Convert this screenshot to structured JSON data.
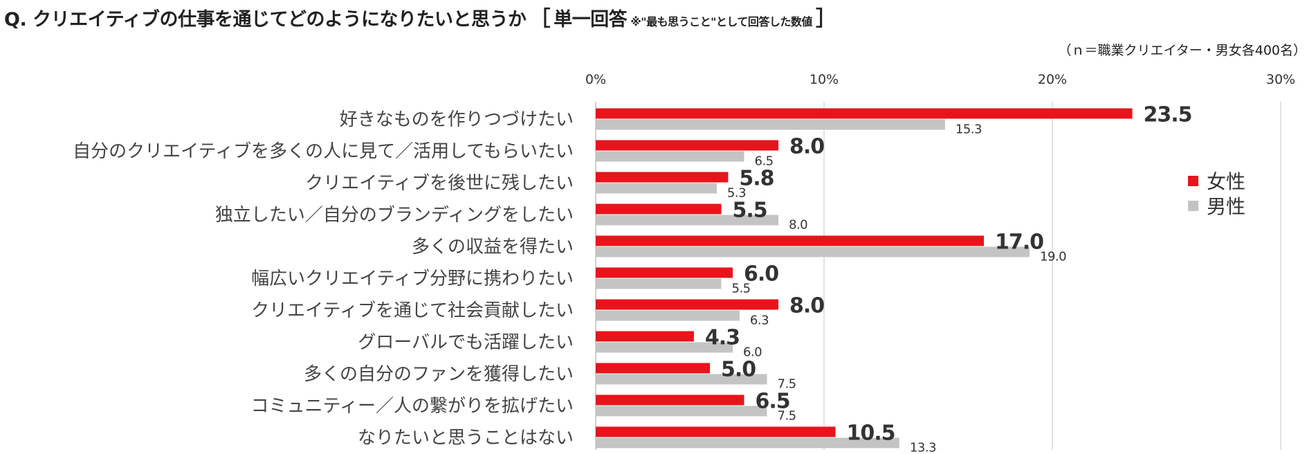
{
  "title": {
    "main": "Q. クリエイティブの仕事を通じてどのようになりたいと思うか",
    "bracket_open": "［",
    "type_label": "単一回答",
    "note": "※\"最も思うこと\"として回答した数値",
    "bracket_close": "］"
  },
  "sample_note": "（ｎ＝職業クリエイター・男女各400名）",
  "colors": {
    "female": "#e8141c",
    "male": "#c4c4c4",
    "gridline": "#d9d9d9",
    "axis": "#bfbfbf"
  },
  "legend": {
    "female_label": "女性",
    "male_label": "男性"
  },
  "chart_data": {
    "type": "bar",
    "orientation": "horizontal",
    "title": "Q. クリエイティブの仕事を通じてどのようになりたいと思うか",
    "xlabel": "",
    "ylabel": "",
    "xlim": [
      0,
      30
    ],
    "ticks": [
      0,
      10,
      20,
      30
    ],
    "tick_labels": [
      "0%",
      "10%",
      "20%",
      "30%"
    ],
    "grid": true,
    "legend_position": "right",
    "categories": [
      "好きなものを作りつづけたい",
      "自分のクリエイティブを多くの人に見て／活用してもらいたい",
      "クリエイティブを後世に残したい",
      "独立したい／自分のブランディングをしたい",
      "多くの収益を得たい",
      "幅広いクリエイティブ分野に携わりたい",
      "クリエイティブを通じて社会貢献したい",
      "グローバルでも活躍したい",
      "多くの自分のファンを獲得したい",
      "コミュニティー／人の繋がりを拡げたい",
      "なりたいと思うことはない"
    ],
    "series": [
      {
        "name": "女性",
        "values": [
          23.5,
          8.0,
          5.8,
          5.5,
          17.0,
          6.0,
          8.0,
          4.3,
          5.0,
          6.5,
          10.5
        ],
        "value_labels": [
          "23.5",
          "8.0",
          "5.8",
          "5.5",
          "17.0",
          "6.0",
          "8.0",
          "4.3",
          "5.0",
          "6.5",
          "10.5"
        ]
      },
      {
        "name": "男性",
        "values": [
          15.3,
          6.5,
          5.3,
          8.0,
          19.0,
          5.5,
          6.3,
          6.0,
          7.5,
          7.5,
          13.3
        ],
        "value_labels": [
          "15.3",
          "6.5",
          "5.3",
          "8.0",
          "19.0",
          "5.5",
          "6.3",
          "6.0",
          "7.5",
          "7.5",
          "13.3"
        ]
      }
    ]
  }
}
